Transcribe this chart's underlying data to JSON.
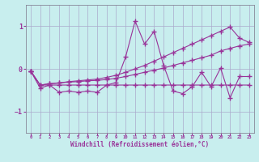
{
  "xlabel": "Windchill (Refroidissement éolien,°C)",
  "background_color": "#c8eeee",
  "grid_color": "#aaaacc",
  "line_color": "#993399",
  "x_data": [
    0,
    1,
    2,
    3,
    4,
    5,
    6,
    7,
    8,
    9,
    10,
    11,
    12,
    13,
    14,
    15,
    16,
    17,
    18,
    19,
    20,
    21,
    22,
    23
  ],
  "series": [
    [
      -0.05,
      -0.45,
      -0.38,
      -0.55,
      -0.52,
      -0.55,
      -0.52,
      -0.55,
      -0.38,
      -0.32,
      0.28,
      1.12,
      0.58,
      0.88,
      0.08,
      -0.52,
      -0.58,
      -0.42,
      -0.08,
      -0.42,
      0.02,
      -0.68,
      -0.18,
      -0.18
    ],
    [
      -0.05,
      -0.38,
      -0.38,
      -0.38,
      -0.38,
      -0.38,
      -0.38,
      -0.38,
      -0.38,
      -0.38,
      -0.38,
      -0.38,
      -0.38,
      -0.38,
      -0.38,
      -0.38,
      -0.38,
      -0.38,
      -0.38,
      -0.38,
      -0.38,
      -0.38,
      -0.38,
      -0.38
    ],
    [
      -0.05,
      -0.38,
      -0.35,
      -0.33,
      -0.31,
      -0.3,
      -0.28,
      -0.27,
      -0.25,
      -0.22,
      -0.18,
      -0.13,
      -0.08,
      -0.03,
      0.02,
      0.08,
      0.14,
      0.2,
      0.26,
      0.32,
      0.42,
      0.48,
      0.54,
      0.58
    ],
    [
      -0.05,
      -0.38,
      -0.35,
      -0.33,
      -0.3,
      -0.28,
      -0.26,
      -0.24,
      -0.2,
      -0.15,
      -0.08,
      0.0,
      0.08,
      0.18,
      0.28,
      0.38,
      0.48,
      0.58,
      0.68,
      0.78,
      0.88,
      0.98,
      0.72,
      0.62
    ]
  ],
  "ylim": [
    -1.5,
    1.5
  ],
  "xlim": [
    -0.5,
    23.5
  ],
  "yticks": [
    -1,
    0,
    1
  ],
  "xticks": [
    0,
    1,
    2,
    3,
    4,
    5,
    6,
    7,
    8,
    9,
    10,
    11,
    12,
    13,
    14,
    15,
    16,
    17,
    18,
    19,
    20,
    21,
    22,
    23
  ],
  "marker": "+",
  "markersize": 4,
  "linewidth": 0.8
}
